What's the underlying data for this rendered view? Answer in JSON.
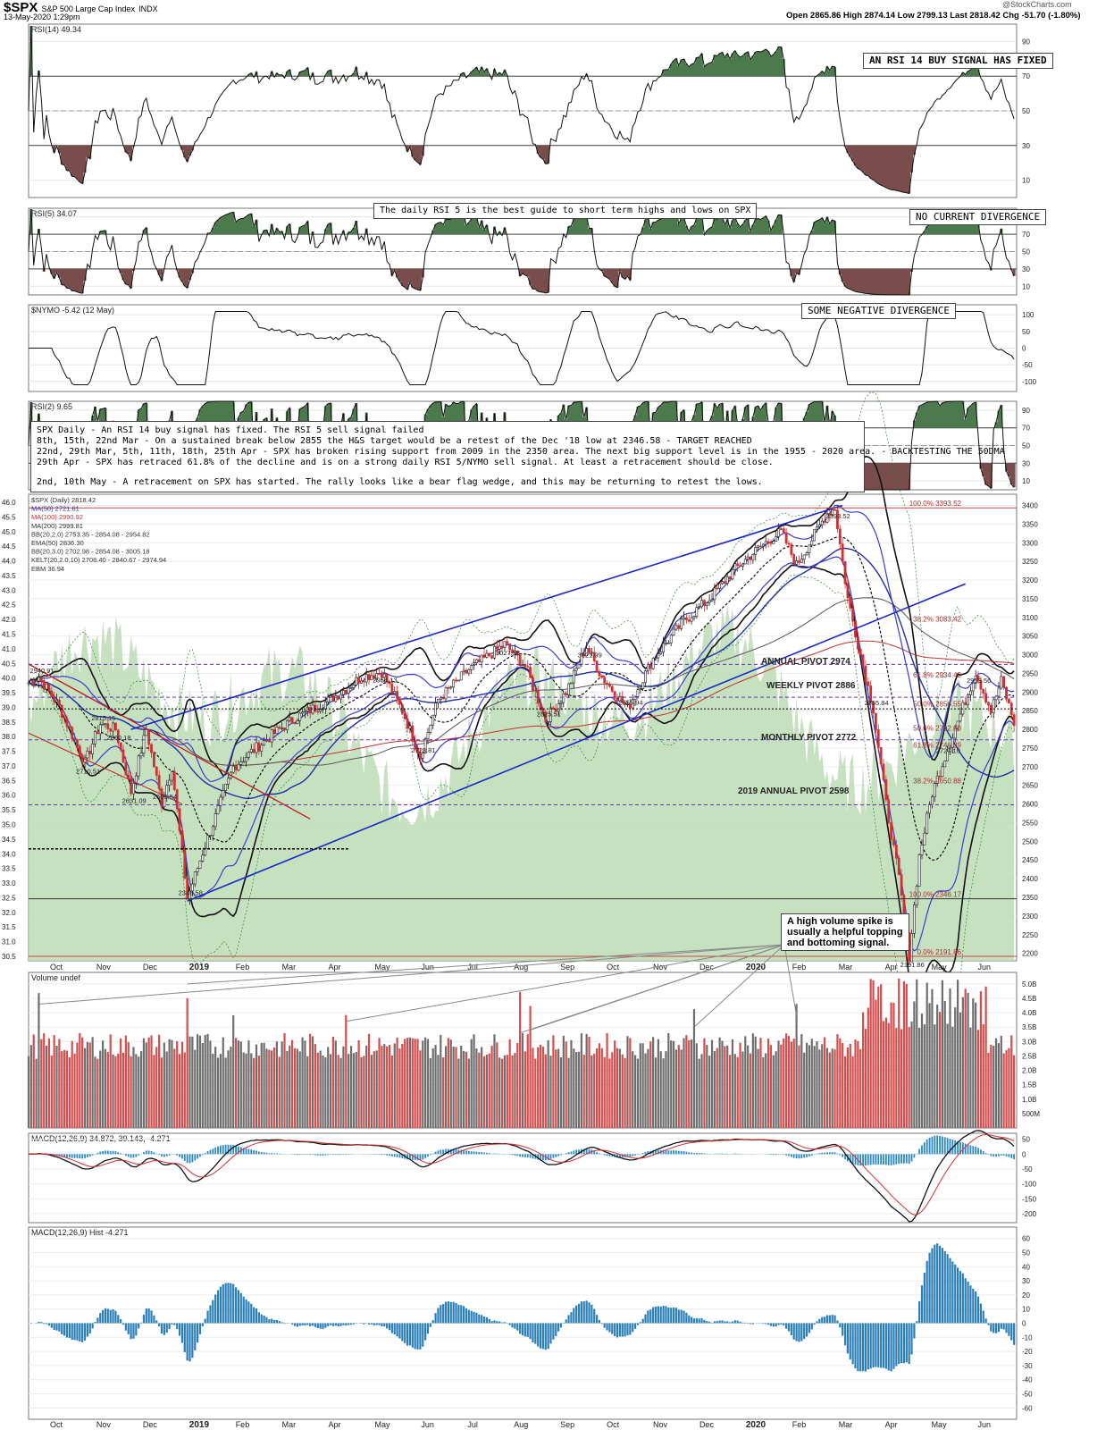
{
  "header": {
    "symbol": "$SPX",
    "name": "S&P 500 Large Cap Index",
    "exchange": "INDX",
    "date": "13-May-2020 1:29pm",
    "ohlc": "Open 2865.86  High 2874.14  Low 2799.13  Last 2818.42  Chg -51.70 (-1.80%)",
    "credit": "@StockCharts.com"
  },
  "panels": {
    "rsi14": {
      "label": "RSI(14) 49.34",
      "ticks": [
        "90",
        "70",
        "50",
        "30",
        "10"
      ]
    },
    "rsi5": {
      "label": "RSI(5) 34.07",
      "ticks": [
        "90",
        "70",
        "50",
        "30",
        "10"
      ]
    },
    "nymo": {
      "label": "$NYMO -5.42 (12 May)",
      "ticks": [
        "100",
        "50",
        "0",
        "-50",
        "-100"
      ]
    },
    "rsi2": {
      "label": "RSI(2) 9.65",
      "ticks": [
        "90",
        "70",
        "50",
        "30",
        "10"
      ]
    },
    "price": {
      "legend": [
        "$SPX (Daily) 2818.42",
        "MA(50) 2721.61",
        "MA(100) 2990.92",
        "MA(200) 2999.81",
        "BB(20,2.0) 2753.35 - 2854.08 - 2954.82",
        "EMA(50) 2836.30",
        "BB(20,3.0) 2702.98 - 2854.08 - 3005.18",
        "KELT(20,2.0,10) 2706.40 - 2840.67 - 2974.94",
        "EBM 36.94"
      ],
      "right_ticks": [
        "3400",
        "3350",
        "3300",
        "3250",
        "3200",
        "3150",
        "3100",
        "3050",
        "3000",
        "2950",
        "2900",
        "2850",
        "2800",
        "2750",
        "2700",
        "2650",
        "2600",
        "2550",
        "2500",
        "2450",
        "2400",
        "2350",
        "2300",
        "2250",
        "2200"
      ],
      "left_ticks": [
        "46.0",
        "45.5",
        "45.0",
        "44.5",
        "44.0",
        "43.5",
        "43.0",
        "42.5",
        "42.0",
        "41.5",
        "41.0",
        "40.5",
        "40.0",
        "39.5",
        "39.0",
        "38.5",
        "38.0",
        "37.5",
        "37.0",
        "36.5",
        "36.0",
        "35.5",
        "35.0",
        "34.5",
        "34.0",
        "33.5",
        "33.0",
        "32.5",
        "32.0",
        "31.5",
        "31.0",
        "30.5"
      ],
      "fib_labels": [
        "100.0% 3393.52",
        "38.2% 3083.42",
        "61.8% 2934.42",
        "50.0% 2856.55",
        "50.0% 2792.00",
        "61.8% 2746.39",
        "38.2% 2650.88",
        "100.0% 2346.17",
        "0.0% 2191.86"
      ],
      "point_labels": [
        "2940.91",
        "2710.51",
        "2815.15",
        "2800.18",
        "2603.54",
        "2631.09",
        "2346.58",
        "2954.13",
        "2728.81",
        "3027.98",
        "2825.51",
        "3021.99",
        "2855.94",
        "3393.52",
        "2855.84",
        "2191.86",
        "2727.10",
        "2953.56"
      ],
      "annotations": [
        "ANNUAL PIVOT 2974",
        "WEEKLY PIVOT 2886",
        "MONTHLY PIVOT 2772",
        "2019 ANNUAL PIVOT 2598"
      ]
    },
    "volume": {
      "label": "Volume undef",
      "ticks": [
        "5.0B",
        "4.5B",
        "4.0B",
        "3.5B",
        "3.0B",
        "2.5B",
        "2.0B",
        "1.5B",
        "1.0B",
        "500M"
      ]
    },
    "macd": {
      "label": "MACD(12,26,9) 34.872, 39.143, -4.271",
      "ticks": [
        "50",
        "0",
        "-50",
        "-100",
        "-150",
        "-200"
      ]
    },
    "hist": {
      "label": "MACD(12,26,9) Hist -4.271",
      "ticks": [
        "60",
        "50",
        "40",
        "30",
        "20",
        "10",
        "0",
        "-10",
        "-20",
        "-30",
        "-40",
        "-50",
        "-60"
      ]
    }
  },
  "x_axis": {
    "labels": [
      "Oct",
      "Nov",
      "Dec",
      "2019",
      "Feb",
      "Mar",
      "Apr",
      "May",
      "Jun",
      "Jul",
      "Aug",
      "Sep",
      "Oct",
      "Nov",
      "Dec",
      "2020",
      "Feb",
      "Mar",
      "Apr",
      "May",
      "Jun"
    ]
  },
  "notes": {
    "rsi14_signal": "AN RSI 14 BUY SIGNAL HAS FIXED",
    "rsi5_guide": "The daily RSI 5 is the best guide to short term highs and lows on SPX",
    "rsi5_div": "NO CURRENT DIVERGENCE",
    "nymo_div": "SOME NEGATIVE DIVERGENCE",
    "main_lines": [
      "SPX Daily - An RSI 14 buy signal has fixed. The RSI 5 sell signal failed",
      "8th, 15th, 22nd Mar - On a sustained break below 2855 the H&S target would be a retest of the Dec '18 low at 2346.58 - TARGET REACHED",
      "22nd, 29th Mar, 5th, 11th, 18th, 25th Apr - SPX has broken rising support from 2009 in the 2350 area. The next big support level is in the 1955 - 2020 area. - BACKTESTING THE 50DMA",
      "29th Apr - SPX has retraced 61.8% of the decline and is on a strong daily RSI 5/NYMO sell signal. At least a retracement should be close.",
      "",
      "2nd, 10th May - A retracement on SPX has started. The rally looks like a bear flag wedge, and this may be returning to retest the lows."
    ],
    "volume_lines": [
      "A high volume spike is",
      "usually a helpful topping",
      "and bottoming signal."
    ]
  },
  "chart_data": {
    "type": "line",
    "title": "$SPX S&P 500 Large Cap Index INDX",
    "x_start": "Oct 2018",
    "x_end": "13 May 2020",
    "anchors": [
      {
        "t": 0,
        "v": 2925
      },
      {
        "t": 4,
        "v": 2940.91
      },
      {
        "t": 12,
        "v": 2860
      },
      {
        "t": 22,
        "v": 2710.51
      },
      {
        "t": 28,
        "v": 2815.15
      },
      {
        "t": 34,
        "v": 2800.18
      },
      {
        "t": 40,
        "v": 2632
      },
      {
        "t": 46,
        "v": 2800.18
      },
      {
        "t": 52,
        "v": 2603.54
      },
      {
        "t": 56,
        "v": 2700
      },
      {
        "t": 62,
        "v": 2346.58
      },
      {
        "t": 68,
        "v": 2470
      },
      {
        "t": 80,
        "v": 2700
      },
      {
        "t": 96,
        "v": 2790
      },
      {
        "t": 104,
        "v": 2830
      },
      {
        "t": 118,
        "v": 2880
      },
      {
        "t": 130,
        "v": 2940
      },
      {
        "t": 138,
        "v": 2954.13
      },
      {
        "t": 146,
        "v": 2850
      },
      {
        "t": 153,
        "v": 2728.81
      },
      {
        "t": 160,
        "v": 2880
      },
      {
        "t": 172,
        "v": 2960
      },
      {
        "t": 186,
        "v": 3027.98
      },
      {
        "t": 194,
        "v": 2970
      },
      {
        "t": 202,
        "v": 2825.51
      },
      {
        "t": 210,
        "v": 2900
      },
      {
        "t": 218,
        "v": 3021.99
      },
      {
        "t": 224,
        "v": 2940
      },
      {
        "t": 234,
        "v": 2855.94
      },
      {
        "t": 244,
        "v": 2990
      },
      {
        "t": 256,
        "v": 3090
      },
      {
        "t": 266,
        "v": 3150
      },
      {
        "t": 276,
        "v": 3230
      },
      {
        "t": 286,
        "v": 3290
      },
      {
        "t": 294,
        "v": 3330
      },
      {
        "t": 300,
        "v": 3240
      },
      {
        "t": 312,
        "v": 3380
      },
      {
        "t": 315,
        "v": 3393.52
      },
      {
        "t": 320,
        "v": 3150
      },
      {
        "t": 325,
        "v": 3000
      },
      {
        "t": 330,
        "v": 2855.84
      },
      {
        "t": 335,
        "v": 2600
      },
      {
        "t": 340,
        "v": 2400
      },
      {
        "t": 344,
        "v": 2191.86
      },
      {
        "t": 348,
        "v": 2460
      },
      {
        "t": 353,
        "v": 2630
      },
      {
        "t": 358,
        "v": 2727.1
      },
      {
        "t": 364,
        "v": 2840
      },
      {
        "t": 370,
        "v": 2953.56
      },
      {
        "t": 376,
        "v": 2850
      },
      {
        "t": 380,
        "v": 2930
      },
      {
        "t": 385,
        "v": 2818.42
      }
    ],
    "ylim": [
      2191.86,
      3393.52
    ]
  }
}
